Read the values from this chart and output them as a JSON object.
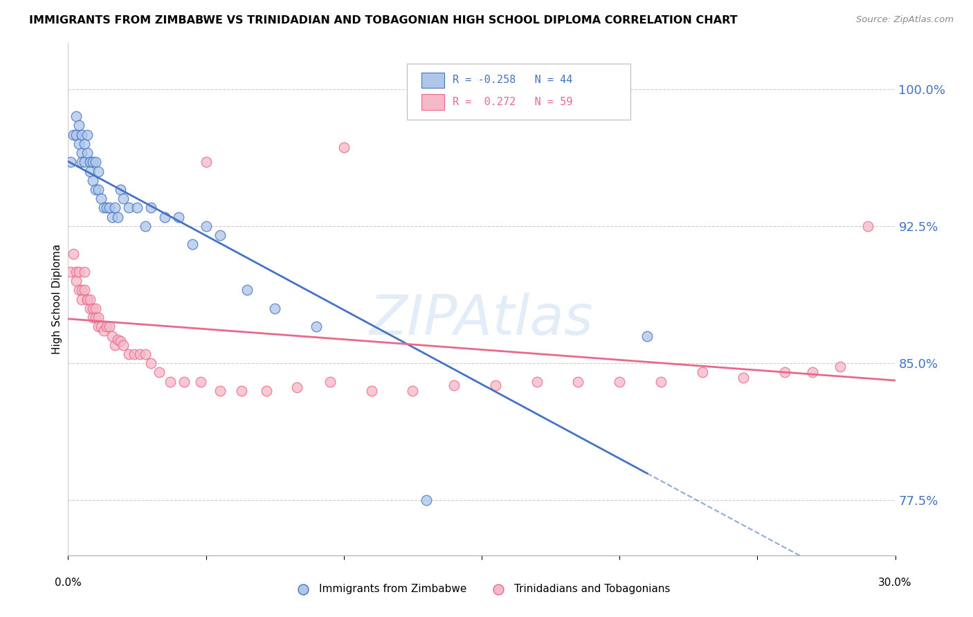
{
  "title": "IMMIGRANTS FROM ZIMBABWE VS TRINIDADIAN AND TOBAGONIAN HIGH SCHOOL DIPLOMA CORRELATION CHART",
  "source": "Source: ZipAtlas.com",
  "ylabel": "High School Diploma",
  "ytick_labels": [
    "100.0%",
    "92.5%",
    "85.0%",
    "77.5%"
  ],
  "ytick_values": [
    1.0,
    0.925,
    0.85,
    0.775
  ],
  "xlim": [
    0.0,
    0.3
  ],
  "ylim": [
    0.745,
    1.025
  ],
  "legend_r_blue": "R = -0.258",
  "legend_n_blue": "N = 44",
  "legend_r_pink": "R =  0.272",
  "legend_n_pink": "N = 59",
  "legend_label_blue": "Immigrants from Zimbabwe",
  "legend_label_pink": "Trinidadians and Tobagonians",
  "blue_fill": "#aec6e8",
  "pink_fill": "#f4b8c8",
  "blue_edge": "#4472c4",
  "pink_edge": "#e8698a",
  "blue_line": "#4472c4",
  "pink_line": "#e8698a",
  "watermark": "ZIPAtlas",
  "blue_x": [
    0.001,
    0.002,
    0.003,
    0.003,
    0.004,
    0.004,
    0.005,
    0.005,
    0.005,
    0.006,
    0.006,
    0.007,
    0.007,
    0.008,
    0.008,
    0.009,
    0.009,
    0.01,
    0.01,
    0.011,
    0.011,
    0.012,
    0.013,
    0.014,
    0.015,
    0.016,
    0.017,
    0.018,
    0.019,
    0.02,
    0.022,
    0.025,
    0.028,
    0.03,
    0.035,
    0.04,
    0.045,
    0.05,
    0.055,
    0.065,
    0.075,
    0.09,
    0.13,
    0.21
  ],
  "blue_y": [
    0.96,
    0.975,
    0.985,
    0.975,
    0.97,
    0.98,
    0.975,
    0.965,
    0.96,
    0.97,
    0.96,
    0.965,
    0.975,
    0.96,
    0.955,
    0.96,
    0.95,
    0.96,
    0.945,
    0.955,
    0.945,
    0.94,
    0.935,
    0.935,
    0.935,
    0.93,
    0.935,
    0.93,
    0.945,
    0.94,
    0.935,
    0.935,
    0.925,
    0.935,
    0.93,
    0.93,
    0.915,
    0.925,
    0.92,
    0.89,
    0.88,
    0.87,
    0.775,
    0.865
  ],
  "pink_x": [
    0.001,
    0.002,
    0.003,
    0.003,
    0.004,
    0.004,
    0.005,
    0.005,
    0.006,
    0.006,
    0.007,
    0.007,
    0.008,
    0.008,
    0.009,
    0.009,
    0.01,
    0.01,
    0.011,
    0.011,
    0.012,
    0.013,
    0.014,
    0.015,
    0.016,
    0.017,
    0.018,
    0.019,
    0.02,
    0.022,
    0.024,
    0.026,
    0.028,
    0.03,
    0.033,
    0.037,
    0.042,
    0.048,
    0.055,
    0.063,
    0.072,
    0.083,
    0.095,
    0.11,
    0.125,
    0.14,
    0.155,
    0.17,
    0.185,
    0.2,
    0.215,
    0.23,
    0.245,
    0.26,
    0.27,
    0.28,
    0.05,
    0.1,
    0.29
  ],
  "pink_y": [
    0.9,
    0.91,
    0.9,
    0.895,
    0.89,
    0.9,
    0.89,
    0.885,
    0.9,
    0.89,
    0.885,
    0.885,
    0.88,
    0.885,
    0.875,
    0.88,
    0.88,
    0.875,
    0.875,
    0.87,
    0.87,
    0.868,
    0.87,
    0.87,
    0.865,
    0.86,
    0.863,
    0.862,
    0.86,
    0.855,
    0.855,
    0.855,
    0.855,
    0.85,
    0.845,
    0.84,
    0.84,
    0.84,
    0.835,
    0.835,
    0.835,
    0.837,
    0.84,
    0.835,
    0.835,
    0.838,
    0.838,
    0.84,
    0.84,
    0.84,
    0.84,
    0.845,
    0.842,
    0.845,
    0.845,
    0.848,
    0.96,
    0.968,
    0.925
  ]
}
